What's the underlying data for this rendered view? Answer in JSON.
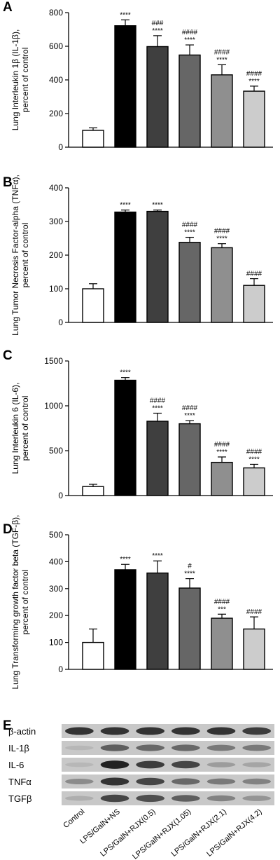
{
  "categories": [
    "Control",
    "LPS/GalN+NS",
    "LPS/GalN+RJX(0.5)",
    "LPS/GalN+RJX(1.05)",
    "LPS/GalN+RJX(2.1)",
    "LPS/GalN+RJX(4.2)"
  ],
  "colors": {
    "bar_fills": [
      "#ffffff",
      "#000000",
      "#3f3f3f",
      "#666666",
      "#8f8f8f",
      "#cccccc"
    ],
    "axis": "#000000"
  },
  "chart_data": [
    {
      "panel": "A",
      "type": "bar",
      "ylabel": "Lung Interleukin 1β (IL-1β), percent of control",
      "ylabel_lines": [
        "Lung Interleukin 1β (IL-1β),",
        "percent of control"
      ],
      "ylim": [
        0,
        800
      ],
      "yticks": [
        0,
        200,
        400,
        600,
        800
      ],
      "values": [
        100,
        722,
        598,
        548,
        430,
        333
      ],
      "errors": [
        15,
        35,
        65,
        60,
        60,
        30
      ],
      "annotations": [
        "",
        "****",
        "###\n****",
        "####\n****",
        "####\n****",
        "####\n****"
      ]
    },
    {
      "panel": "B",
      "type": "bar",
      "ylabel": "Lung Tumor Necrosis Factor-alpha (TNFα), percent of control",
      "ylabel_lines": [
        "Lung Tumor Necrosis Factor-alpha (TNFα),",
        "percent of control"
      ],
      "ylim": [
        0,
        400
      ],
      "yticks": [
        0,
        100,
        200,
        300,
        400
      ],
      "values": [
        100,
        328,
        330,
        238,
        222,
        110
      ],
      "errors": [
        15,
        6,
        4,
        15,
        12,
        20
      ],
      "annotations": [
        "",
        "****",
        "****",
        "####\n****",
        "####\n****",
        "####"
      ]
    },
    {
      "panel": "C",
      "type": "bar",
      "ylabel": "Lung Interleukin 6 (IL-6), percent of control",
      "ylabel_lines": [
        "Lung Interleukin 6 (IL-6),",
        "percent of control"
      ],
      "ylim": [
        0,
        1500
      ],
      "yticks": [
        0,
        500,
        1000,
        1500
      ],
      "values": [
        100,
        1285,
        828,
        800,
        370,
        308
      ],
      "errors": [
        25,
        30,
        90,
        35,
        60,
        40
      ],
      "annotations": [
        "",
        "****",
        "####\n****",
        "####\n****",
        "####\n****",
        "####\n****"
      ]
    },
    {
      "panel": "D",
      "type": "bar",
      "ylabel": "Lung Transforming growth factor beta (TGF-β), percent of control",
      "ylabel_lines": [
        "Lung Transforming growth factor beta (TGF-β),",
        "percent of control"
      ],
      "ylim": [
        0,
        500
      ],
      "yticks": [
        0,
        100,
        200,
        300,
        400,
        500
      ],
      "values": [
        100,
        370,
        358,
        302,
        190,
        150
      ],
      "errors": [
        50,
        20,
        45,
        35,
        15,
        45
      ],
      "annotations": [
        "",
        "****",
        "****",
        "#\n****",
        "####\n***",
        "####"
      ]
    }
  ],
  "blot": {
    "panel": "E",
    "rows": [
      {
        "label": "β-actin",
        "intensities": [
          0.85,
          0.85,
          0.85,
          0.85,
          0.85,
          0.8
        ]
      },
      {
        "label": "IL-1β",
        "intensities": [
          0.1,
          0.6,
          0.55,
          0.55,
          0.45,
          0.45
        ]
      },
      {
        "label": "IL-6",
        "intensities": [
          0.1,
          0.95,
          0.8,
          0.75,
          0.25,
          0.2
        ]
      },
      {
        "label": "TNFα",
        "intensities": [
          0.35,
          0.85,
          0.75,
          0.55,
          0.45,
          0.4
        ]
      },
      {
        "label": "TGFβ",
        "intensities": [
          0.15,
          0.75,
          0.7,
          0.6,
          0.4,
          0.3
        ]
      }
    ]
  }
}
